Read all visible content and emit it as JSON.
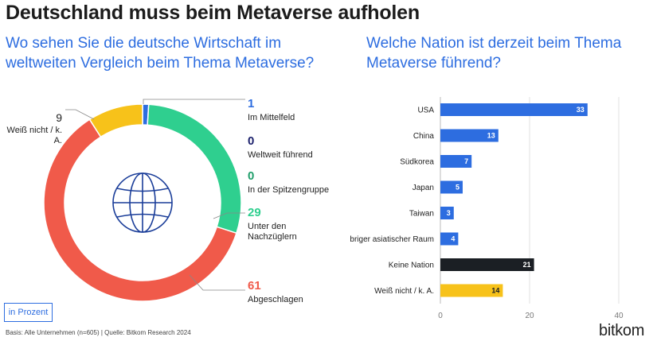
{
  "title": "Deutschland muss beim Metaverse aufholen",
  "unit_label": "in Prozent",
  "footnote": "Basis: Alle Unternehmen (n=605) | Quelle: Bitkom Research 2024",
  "brand": "bitkom",
  "colors": {
    "blue": "#2d6de0",
    "navy": "#1a1f6b",
    "green": "#2fcf8f",
    "red": "#f05a4a",
    "yellow": "#f7c21a",
    "black": "#1b1f24"
  },
  "chart_data": [
    {
      "type": "pie",
      "title": "Wo sehen Sie die deutsche Wirtschaft im weltweiten Vergleich beim Thema Metaverse?",
      "center_icon": "globe-icon",
      "slices": [
        {
          "label": "Im Mittelfeld",
          "value": 1,
          "color": "#2d6de0"
        },
        {
          "label": "Weltweit führend",
          "value": 0,
          "color": "#1a1f6b"
        },
        {
          "label": "In der Spitzengruppe",
          "value": 0,
          "color": "#2fcf8f"
        },
        {
          "label": "Unter den Nachzüglern",
          "value": 29,
          "color": "#2fcf8f"
        },
        {
          "label": "Abgeschlagen",
          "value": 61,
          "color": "#f05a4a"
        },
        {
          "label": "Weiß nicht / k. A.",
          "value": 9,
          "color": "#f7c21a"
        }
      ]
    },
    {
      "type": "bar",
      "orientation": "horizontal",
      "title": "Welche Nation ist derzeit beim Thema Metaverse führend?",
      "categories": [
        "USA",
        "China",
        "Südkorea",
        "Japan",
        "Taiwan",
        "Übriger asiatischer Raum",
        "Keine Nation",
        "Weiß nicht / k. A."
      ],
      "values": [
        33,
        13,
        7,
        5,
        3,
        4,
        21,
        14
      ],
      "colors": [
        "#2d6de0",
        "#2d6de0",
        "#2d6de0",
        "#2d6de0",
        "#2d6de0",
        "#2d6de0",
        "#1b1f24",
        "#f7c21a"
      ],
      "xlim": [
        0,
        40
      ],
      "xticks": [
        0,
        20,
        40
      ],
      "grid": true
    }
  ]
}
